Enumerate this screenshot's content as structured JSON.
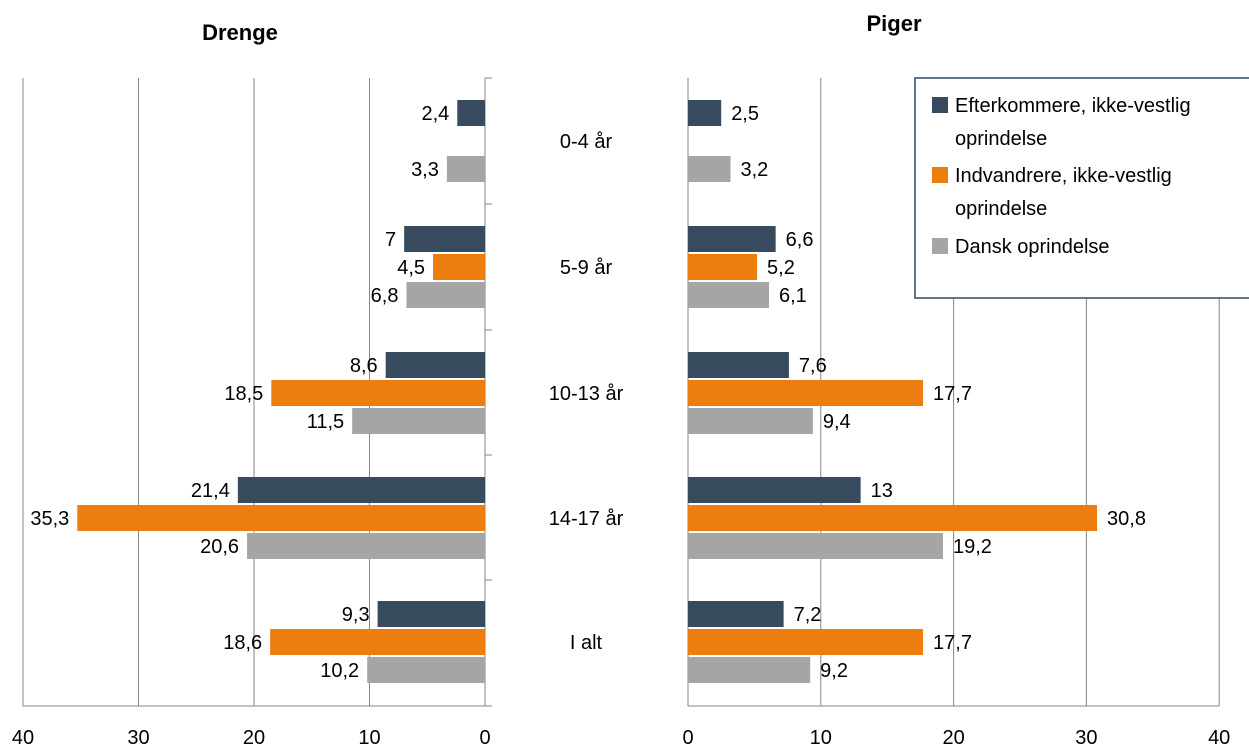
{
  "colors": {
    "Efterkommere": "#374a5e",
    "Indvandrere": "#ed7d0e",
    "Dansk": "#a5a5a5",
    "grid": "#868686",
    "axis": "#868686"
  },
  "legend": [
    {
      "key": "Efterkommere",
      "lines": [
        "Efterkommere, ikke-vestlig",
        "oprindelse"
      ]
    },
    {
      "key": "Indvandrere",
      "lines": [
        "Indvandrere, ikke-vestlig",
        "oprindelse"
      ]
    },
    {
      "key": "Dansk",
      "lines": [
        "Dansk oprindelse"
      ]
    }
  ],
  "chart_data": [
    {
      "type": "bar",
      "orientation": "horizontal",
      "direction": "reversed",
      "title": "Drenge",
      "categories": [
        "0-4 år",
        "5-9 år",
        "10-13 år",
        "14-17 år",
        "I alt"
      ],
      "xlim": [
        0,
        40
      ],
      "xticks": [
        40,
        30,
        20,
        10,
        0
      ],
      "grid": true,
      "series": [
        {
          "name": "Efterkommere, ikke-vestlig oprindelse",
          "key": "Efterkommere",
          "values": [
            2.4,
            7,
            8.6,
            21.4,
            9.3
          ],
          "labels": [
            "2,4",
            "7",
            "8,6",
            "21,4",
            "9,3"
          ]
        },
        {
          "name": "Indvandrere, ikke-vestlig oprindelse",
          "key": "Indvandrere",
          "values": [
            null,
            4.5,
            18.5,
            35.3,
            18.6
          ],
          "labels": [
            "",
            "4,5",
            "18,5",
            "35,3",
            "18,6"
          ]
        },
        {
          "name": "Dansk oprindelse",
          "key": "Dansk",
          "values": [
            3.3,
            6.8,
            11.5,
            20.6,
            10.2
          ],
          "labels": [
            "3,3",
            "6,8",
            "11,5",
            "20,6",
            "10,2"
          ]
        }
      ]
    },
    {
      "type": "bar",
      "orientation": "horizontal",
      "title": "Piger",
      "categories": [
        "0-4 år",
        "5-9 år",
        "10-13 år",
        "14-17 år",
        "I alt"
      ],
      "xlim": [
        0,
        40
      ],
      "xticks": [
        0,
        10,
        20,
        30,
        40
      ],
      "grid": true,
      "legend": "top-right",
      "series": [
        {
          "name": "Efterkommere, ikke-vestlig oprindelse",
          "key": "Efterkommere",
          "values": [
            2.5,
            6.6,
            7.6,
            13,
            7.2
          ],
          "labels": [
            "2,5",
            "6,6",
            "7,6",
            "13",
            "7,2"
          ]
        },
        {
          "name": "Indvandrere, ikke-vestlig oprindelse",
          "key": "Indvandrere",
          "values": [
            null,
            5.2,
            17.7,
            30.8,
            17.7
          ],
          "labels": [
            "",
            "5,2",
            "17,7",
            "30,8",
            "17,7"
          ]
        },
        {
          "name": "Dansk oprindelse",
          "key": "Dansk",
          "values": [
            3.2,
            6.1,
            9.4,
            19.2,
            9.2
          ],
          "labels": [
            "3,2",
            "6,1",
            "9,4",
            "19,2",
            "9,2"
          ]
        }
      ]
    }
  ]
}
